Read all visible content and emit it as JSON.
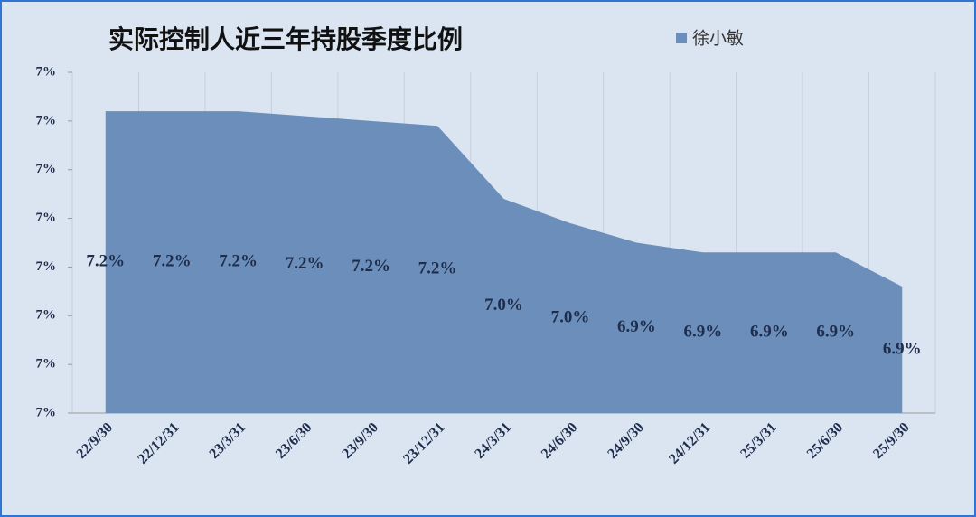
{
  "chart_data": {
    "type": "area",
    "title": "实际控制人近三年持股季度比例",
    "categories": [
      "22/9/30",
      "22/12/31",
      "23/3/31",
      "23/6/30",
      "23/9/30",
      "23/12/31",
      "24/3/31",
      "24/6/30",
      "24/9/30",
      "24/12/31",
      "25/3/31",
      "25/6/30",
      "25/9/30"
    ],
    "series": [
      {
        "name": "徐小敏",
        "color": "#6b8fba",
        "values": [
          7.22,
          7.22,
          7.22,
          7.21,
          7.2,
          7.19,
          7.04,
          6.99,
          6.95,
          6.93,
          6.93,
          6.93,
          6.86
        ],
        "value_labels": [
          "7.2%",
          "7.2%",
          "7.2%",
          "7.2%",
          "7.2%",
          "7.2%",
          "7.0%",
          "7.0%",
          "6.9%",
          "6.9%",
          "6.9%",
          "6.9%",
          "6.9%"
        ]
      }
    ],
    "ylim": [
      6.6,
      7.3
    ],
    "yticks": [
      {
        "value": 6.6,
        "label": "7%"
      },
      {
        "value": 6.7,
        "label": "7%"
      },
      {
        "value": 6.8,
        "label": "7%"
      },
      {
        "value": 6.9,
        "label": "7%"
      },
      {
        "value": 7.0,
        "label": "7%"
      },
      {
        "value": 7.1,
        "label": "7%"
      },
      {
        "value": 7.2,
        "label": "7%"
      },
      {
        "value": 7.3,
        "label": "7%"
      }
    ],
    "grid": true,
    "legend": "top"
  }
}
